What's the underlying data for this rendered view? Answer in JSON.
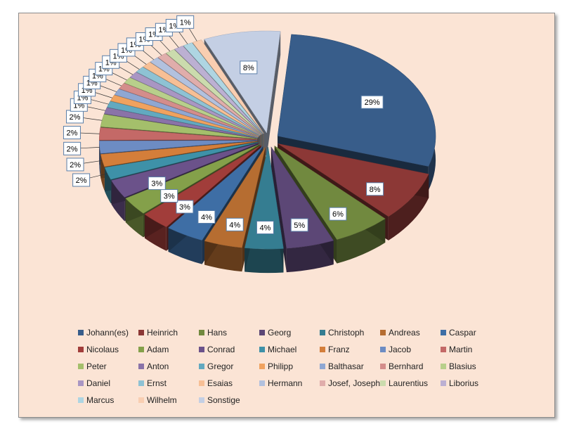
{
  "chart_data": {
    "type": "pie",
    "variant": "3d-exploded",
    "title": "",
    "legend_position": "bottom",
    "categories": [
      "Johann(es)",
      "Heinrich",
      "Hans",
      "Georg",
      "Christoph",
      "Andreas",
      "Caspar",
      "Nicolaus",
      "Adam",
      "Conrad",
      "Michael",
      "Franz",
      "Jacob",
      "Martin",
      "Peter",
      "Anton",
      "Gregor",
      "Philipp",
      "Balthasar",
      "Bernhard",
      "Blasius",
      "Daniel",
      "Ernst",
      "Esaias",
      "Hermann",
      "Josef, Joseph",
      "Laurentius",
      "Liborius",
      "Marcus",
      "Wilhelm",
      "Sonstige"
    ],
    "values": [
      29,
      8,
      6,
      5,
      4,
      4,
      4,
      3,
      3,
      3,
      2,
      2,
      2,
      2,
      2,
      1,
      1,
      1,
      1,
      1,
      1,
      1,
      1,
      1,
      1,
      1,
      1,
      1,
      1,
      1,
      8
    ],
    "data_labels": [
      "29%",
      "8%",
      "6%",
      "5%",
      "4%",
      "4%",
      "4%",
      "3%",
      "3%",
      "3%",
      "2%",
      "2%",
      "2%",
      "2%",
      "2%",
      "1%",
      "1%",
      "1%",
      "1%",
      "1%",
      "1%",
      "1%",
      "1%",
      "1%",
      "1%",
      "1%",
      "1%",
      "1%",
      "1%",
      "1%",
      "8%"
    ],
    "colors": [
      "#385d8a",
      "#8c3836",
      "#71893f",
      "#5c4776",
      "#357d91",
      "#b66d31",
      "#3e6ea5",
      "#a13d3a",
      "#84a04a",
      "#6b528a",
      "#3e91a8",
      "#d47e3a",
      "#6d8cc3",
      "#c46967",
      "#a4bf6b",
      "#8a73a8",
      "#62a9c0",
      "#f0a25f",
      "#8fa7d2",
      "#d48d8b",
      "#b8cf8b",
      "#a996c3",
      "#8ec2d4",
      "#f7bf95",
      "#b2c1de",
      "#e0adab",
      "#cbdbad",
      "#bcb0d2",
      "#aed5e2",
      "#f9ceb1",
      "#c4cfe4"
    ]
  }
}
